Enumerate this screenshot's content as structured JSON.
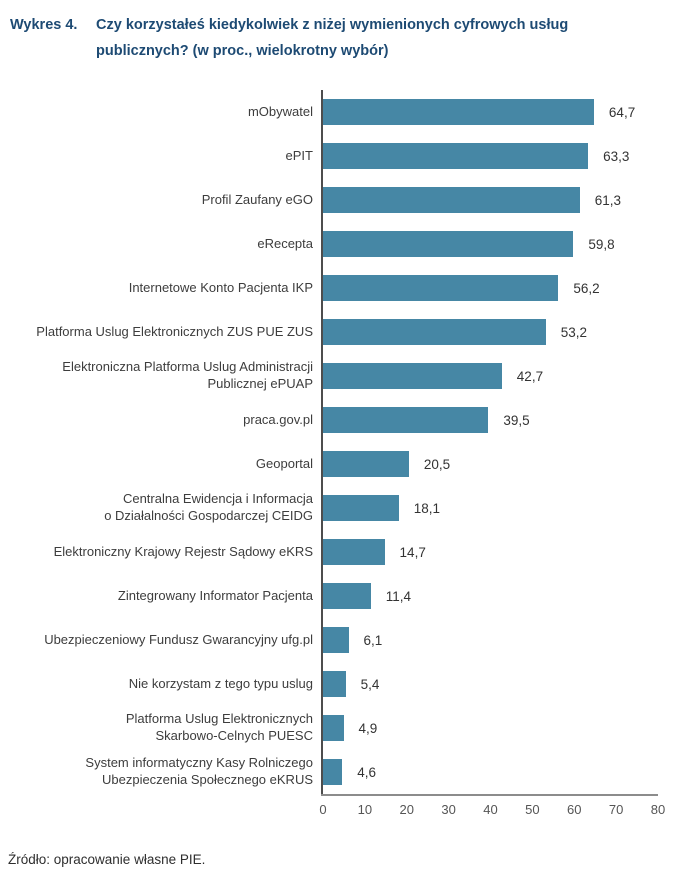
{
  "title": {
    "prefix": "Wykres 4.",
    "text_line1": "Czy korzystałeś kiedykolwiek z niżej wymienionych cyfrowych usług",
    "text_line2": "publicznych? (w proc., wielokrotny wybór)"
  },
  "source_note": "Źródło: opracowanie własne PIE.",
  "colors": {
    "bar": "#4687a5",
    "title": "#1d4a73",
    "category_label": "#3d3d3d",
    "value_label": "#333333",
    "tick_label": "#555555",
    "y_axis_line": "#4d4d4d",
    "x_axis_line": "#8c8c8c"
  },
  "chart_data": {
    "type": "bar",
    "orientation": "horizontal",
    "title": "Wykres 4. Czy korzystałeś kiedykolwiek z niżej wymienionych cyfrowych usług publicznych? (w proc., wielokrotny wybór)",
    "categories": [
      "mObywatel",
      "ePIT",
      "Profil Zaufany eGO",
      "eRecepta",
      "Internetowe Konto Pacjenta IKP",
      "Platforma Uslug Elektronicznych ZUS PUE ZUS",
      "Elektroniczna Platforma Uslug Administracji\nPublicznej ePUAP",
      "praca.gov.pl",
      "Geoportal",
      "Centralna Ewidencja i Informacja\no Działalności Gospodarczej CEIDG",
      "Elektroniczny Krajowy Rejestr Sądowy eKRS",
      "Zintegrowany Informator Pacjenta",
      "Ubezpieczeniowy Fundusz Gwarancyjny ufg.pl",
      "Nie korzystam z tego typu uslug",
      "Platforma Uslug Elektronicznych\nSkarbowo-Celnych PUESC",
      "System informatyczny Kasy Rolniczego\nUbezpieczenia Społecznego eKRUS"
    ],
    "values": [
      64.7,
      63.3,
      61.3,
      59.8,
      56.2,
      53.2,
      42.7,
      39.5,
      20.5,
      18.1,
      14.7,
      11.4,
      6.1,
      5.4,
      4.9,
      4.6
    ],
    "value_labels": [
      "64,7",
      "63,3",
      "61,3",
      "59,8",
      "56,2",
      "53,2",
      "42,7",
      "39,5",
      "20,5",
      "18,1",
      "14,7",
      "11,4",
      "6,1",
      "5,4",
      "4,9",
      "4,6"
    ],
    "xlabel": "",
    "ylabel": "",
    "xlim": [
      0,
      80
    ],
    "xticks": [
      0,
      10,
      20,
      30,
      40,
      50,
      60,
      70,
      80
    ],
    "grid": false,
    "legend": false,
    "units": "proc."
  }
}
